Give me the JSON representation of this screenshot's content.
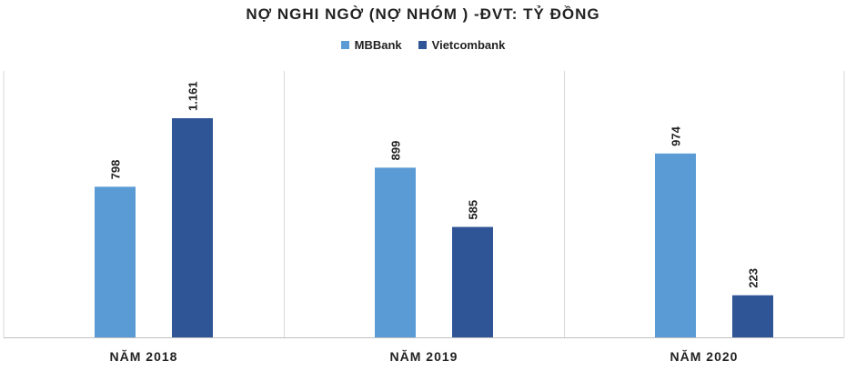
{
  "chart_data": {
    "type": "bar",
    "title": "NỢ NGHI NGỜ (NỢ NHÓM ) -ĐVT: TỶ ĐỒNG",
    "categories": [
      "NĂM 2018",
      "NĂM 2019",
      "NĂM 2020"
    ],
    "series": [
      {
        "name": "MBBank",
        "color": "#5b9bd5",
        "values": [
          798,
          899,
          974
        ],
        "labels": [
          "798",
          "899",
          "974"
        ]
      },
      {
        "name": "Vietcombank",
        "color": "#2f5597",
        "values": [
          1161,
          585,
          223
        ],
        "labels": [
          "1.161",
          "585",
          "223"
        ]
      }
    ],
    "ylim": [
      0,
      1161
    ],
    "grid": false,
    "legend_position": "top-center",
    "xlabel": "",
    "ylabel": ""
  }
}
